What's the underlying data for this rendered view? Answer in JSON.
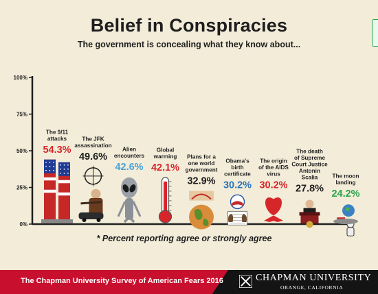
{
  "title": "Belief in Conspiracies",
  "subtitle": "The government is concealing what they know about...",
  "footnote": "* Percent reporting agree or strongly agree",
  "footer": {
    "survey": "The Chapman University Survey of American Fears 2016",
    "university": "CHAPMAN UNIVERSITY",
    "location": "ORANGE, CALIFORNIA"
  },
  "colors": {
    "background": "#f2ecd9",
    "dark": "#1e1e1e",
    "brand_red": "#c8102e"
  },
  "chart_data": {
    "type": "bar",
    "title": "Belief in Conspiracies",
    "subtitle": "The government is concealing what they know about...",
    "categories": [
      "The 9/11 attacks",
      "The JFK assassination",
      "Alien encounters",
      "Global warming",
      "Plans for a one world government",
      "Obama's birth certificate",
      "The origin of the AIDS virus",
      "The death of Supreme Court Justice Antonin Scalia",
      "The moon landing"
    ],
    "label_lines": [
      [
        "The 9/11",
        "attacks"
      ],
      [
        "The JFK",
        "assassination"
      ],
      [
        "Alien",
        "encounters"
      ],
      [
        "Global",
        "warming"
      ],
      [
        "Plans for a",
        "one world",
        "government"
      ],
      [
        "Obama's",
        "birth",
        "certificate"
      ],
      [
        "The origin",
        "of the AIDS",
        "virus"
      ],
      [
        "The death",
        "of Supreme",
        "Court Justice",
        "Antonin",
        "Scalia"
      ],
      [
        "The moon",
        "landing"
      ]
    ],
    "values": [
      54.3,
      49.6,
      42.6,
      42.1,
      32.9,
      30.2,
      30.2,
      27.8,
      24.2
    ],
    "value_labels": [
      "54.3%",
      "49.6%",
      "42.6%",
      "42.1%",
      "32.9%",
      "30.2%",
      "30.2%",
      "27.8%",
      "24.2%"
    ],
    "value_colors": [
      "#d7262a",
      "#1e1e1e",
      "#4aa3d6",
      "#d7262a",
      "#1e1e1e",
      "#2a76b8",
      "#d7262a",
      "#1e1e1e",
      "#2aa34a"
    ],
    "icons": [
      "twin-towers",
      "jfk",
      "alien",
      "thermometer",
      "globe",
      "birth-certificate",
      "aids-ribbon",
      "podium",
      "moon-landing"
    ],
    "y_ticks": [
      "0%",
      "25%",
      "50%",
      "75%",
      "100%"
    ],
    "ylim": [
      0,
      100
    ],
    "grid": false,
    "xlabel": "",
    "ylabel": ""
  }
}
